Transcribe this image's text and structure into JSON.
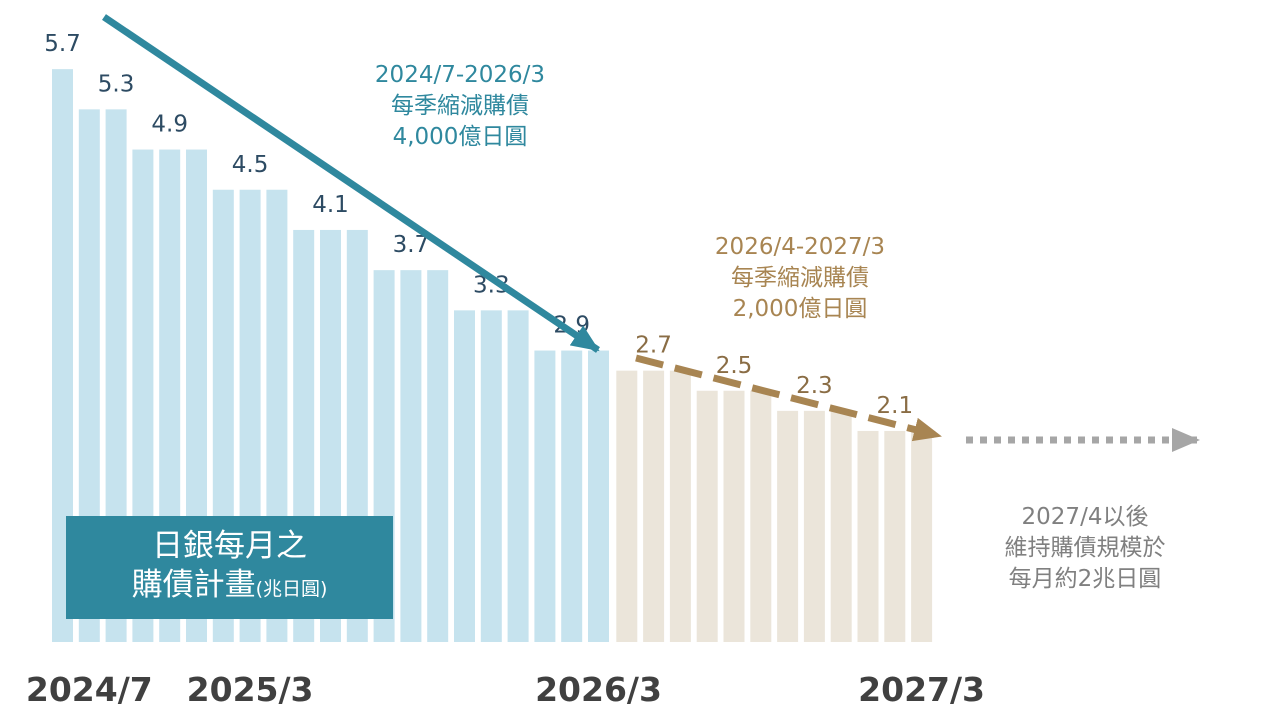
{
  "colors": {
    "phase1_bar": "#c6e3ee",
    "phase2_bar": "#ebe5da",
    "phase1_accent": "#2f889e",
    "phase2_accent": "#a88552",
    "phase3_accent": "#a6a6a6",
    "title_box": "#2f889e",
    "phase1_value_text": "#2d4b63",
    "phase2_value_text": "#8a6d45",
    "tick_text": "#404040"
  },
  "chart_data": {
    "type": "bar",
    "title_line1": "日銀每月之",
    "title_line2": "購債計畫",
    "unit": "(兆日圓)",
    "ylim": [
      0,
      6
    ],
    "grid": false,
    "values": [
      5.7,
      5.3,
      5.3,
      4.9,
      4.9,
      4.9,
      4.5,
      4.5,
      4.5,
      4.1,
      4.1,
      4.1,
      3.7,
      3.7,
      3.7,
      3.3,
      3.3,
      3.3,
      2.9,
      2.9,
      2.9,
      2.7,
      2.7,
      2.7,
      2.5,
      2.5,
      2.5,
      2.3,
      2.3,
      2.3,
      2.1,
      2.1,
      2.1
    ],
    "phase1_bar_count": 21,
    "value_labels": [
      {
        "bar": 0,
        "text": "5.7",
        "phase": 1
      },
      {
        "bar": 2,
        "text": "5.3",
        "phase": 1
      },
      {
        "bar": 4,
        "text": "4.9",
        "phase": 1
      },
      {
        "bar": 7,
        "text": "4.5",
        "phase": 1
      },
      {
        "bar": 10,
        "text": "4.1",
        "phase": 1
      },
      {
        "bar": 13,
        "text": "3.7",
        "phase": 1
      },
      {
        "bar": 16,
        "text": "3.3",
        "phase": 1
      },
      {
        "bar": 19,
        "text": "2.9",
        "phase": 1
      },
      {
        "bar": 22,
        "text": "2.7",
        "phase": 2
      },
      {
        "bar": 25,
        "text": "2.5",
        "phase": 2
      },
      {
        "bar": 28,
        "text": "2.3",
        "phase": 2
      },
      {
        "bar": 31,
        "text": "2.1",
        "phase": 2
      }
    ],
    "x_tick_labels": [
      {
        "bar": 1,
        "text": "2024/7"
      },
      {
        "bar": 7,
        "text": "2025/3"
      },
      {
        "bar": 20,
        "text": "2026/3"
      },
      {
        "bar": 32,
        "text": "2027/3"
      }
    ],
    "annotations": {
      "phase1": "2024/7-2026/3\n每季縮減購債\n4,000億日圓",
      "phase2": "2026/4-2027/3\n每季縮減購債\n2,000億日圓",
      "phase3": "2027/4以後\n維持購債規模於\n每月約2兆日圓"
    }
  }
}
